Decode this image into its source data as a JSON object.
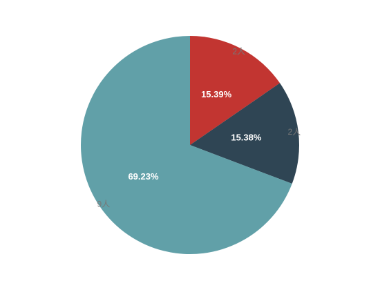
{
  "chart_data": {
    "type": "pie",
    "categories": [
      "2人",
      "2人",
      "9人"
    ],
    "values": [
      15.39,
      15.38,
      69.23
    ],
    "value_labels": [
      "15.39%",
      "15.38%",
      "69.23%"
    ],
    "colors": [
      "#c23531",
      "#2f4554",
      "#61a0a8"
    ]
  }
}
